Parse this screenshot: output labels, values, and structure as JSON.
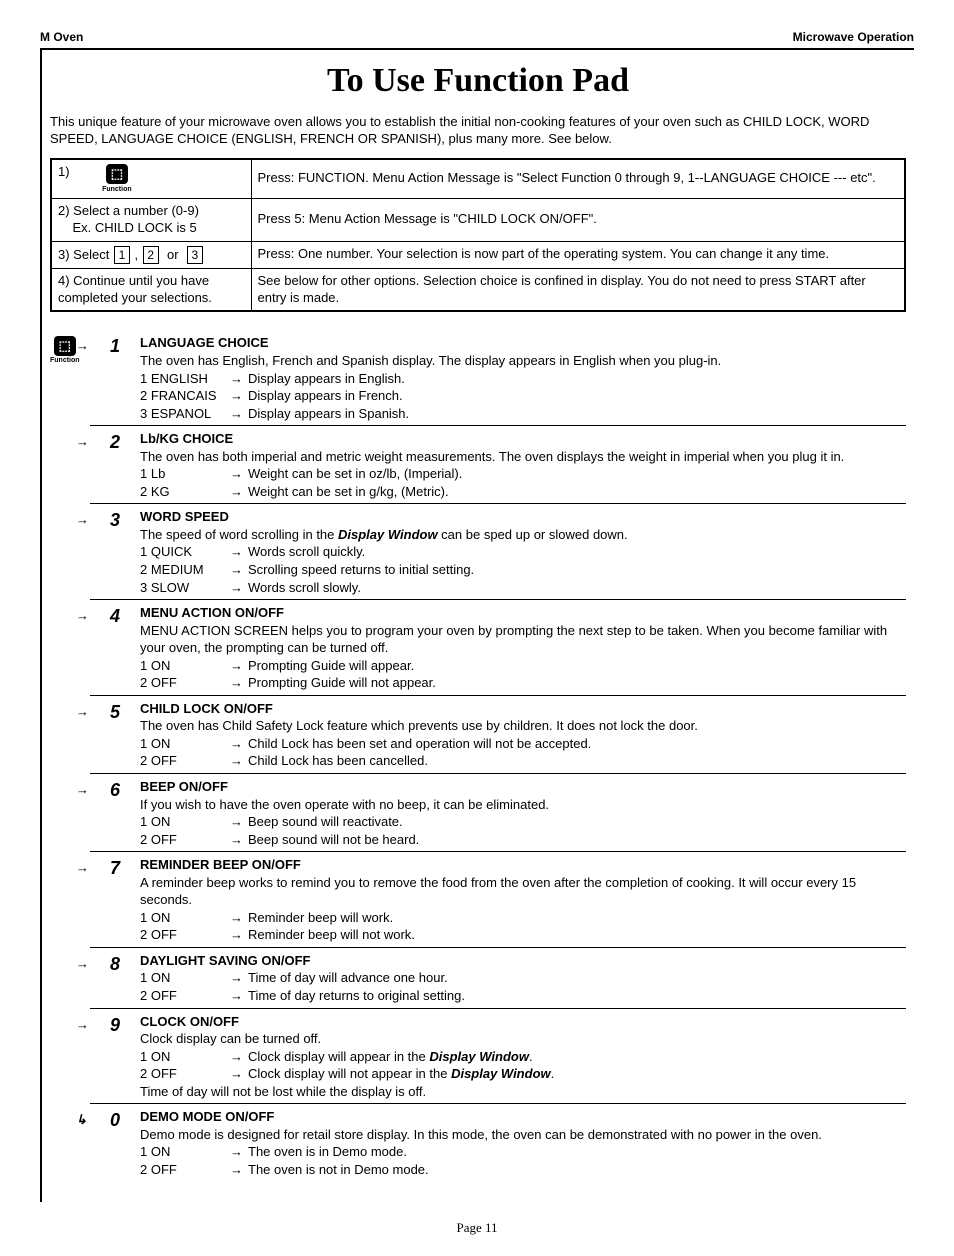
{
  "header": {
    "left": "M Oven",
    "right": "Microwave Operation"
  },
  "title": "To Use Function Pad",
  "intro": "This unique feature of your microwave oven allows you to establish the initial non-cooking features of your oven such as CHILD LOCK, WORD SPEED, LANGUAGE CHOICE (ENGLISH, FRENCH OR SPANISH), plus many more. See below.",
  "steps": [
    {
      "n": "1)",
      "left_html": "icon",
      "right": "Press: FUNCTION. Menu Action Message is \"Select Function 0 through 9, 1--LANGUAGE CHOICE --- etc\"."
    },
    {
      "n": "2)",
      "left_text": "Select a number (0-9)\nEx.  CHILD LOCK is 5",
      "right": "Press 5: Menu Action Message is \"CHILD LOCK ON/OFF\"."
    },
    {
      "n": "3)",
      "left_html": "select123",
      "right": "Press: One number. Your selection is now part of the operating system. You can change it any time."
    },
    {
      "n": "4)",
      "left_text": "Continue until you have completed your selections.",
      "right": "See below for other options. Selection choice is confined in display. You do not need to press START after entry is made."
    }
  ],
  "icon_label": "Function",
  "select_word": "Select",
  "or_word": "or",
  "functions": [
    {
      "num": "1",
      "heading": "LANGUAGE CHOICE",
      "desc": "The oven has English, French and Spanish display. The display appears in English when you plug-in.",
      "opts": [
        {
          "k": "1 ENGLISH",
          "v": "Display appears in English."
        },
        {
          "k": "2 FRANCAIS",
          "v": "Display appears in French."
        },
        {
          "k": "3 ESPANOL",
          "v": "Display appears in Spanish."
        }
      ]
    },
    {
      "num": "2",
      "heading": "Lb/KG CHOICE",
      "desc": "The oven has both imperial and metric weight measurements. The oven displays the weight in imperial when you plug it in.",
      "opts": [
        {
          "k": "1 Lb",
          "v": "Weight can be set in oz/lb, (Imperial)."
        },
        {
          "k": "2 KG",
          "v": "Weight can be set in g/kg, (Metric)."
        }
      ]
    },
    {
      "num": "3",
      "heading": "WORD SPEED",
      "desc_html": "The speed of word scrolling in the <span class=\"bolditalic\">Display Window</span> can be sped up or slowed down.",
      "opts": [
        {
          "k": "1 QUICK",
          "v": "Words scroll quickly."
        },
        {
          "k": "2 MEDIUM",
          "v": "Scrolling speed returns to initial setting."
        },
        {
          "k": "3 SLOW",
          "v": "Words scroll slowly."
        }
      ]
    },
    {
      "num": "4",
      "heading": "MENU ACTION ON/OFF",
      "desc": "MENU ACTION SCREEN helps you to program your oven by prompting the next step to be taken. When you become familiar with your oven, the prompting can be turned off.",
      "opts": [
        {
          "k": "1 ON",
          "v": "Prompting Guide will appear."
        },
        {
          "k": "2 OFF",
          "v": "Prompting Guide will not appear."
        }
      ]
    },
    {
      "num": "5",
      "heading": "CHILD LOCK ON/OFF",
      "desc": "The oven has Child Safety Lock feature which prevents use by children.  It does not lock the door.",
      "opts": [
        {
          "k": "1 ON",
          "v": "Child Lock has been set and operation will not be accepted."
        },
        {
          "k": "2 OFF",
          "v": "Child Lock has been cancelled."
        }
      ]
    },
    {
      "num": "6",
      "heading": "BEEP ON/OFF",
      "desc": "If you wish to have the oven operate with no beep, it can be eliminated.",
      "opts": [
        {
          "k": "1 ON",
          "v": "Beep sound will reactivate."
        },
        {
          "k": "2 OFF",
          "v": "Beep sound will not be heard."
        }
      ]
    },
    {
      "num": "7",
      "heading": "REMINDER BEEP ON/OFF",
      "desc": "A reminder beep works to remind you to remove the food from the oven after the completion of cooking. It will occur every 15 seconds.",
      "opts": [
        {
          "k": "1 ON",
          "v": "Reminder beep will work."
        },
        {
          "k": "2 OFF",
          "v": "Reminder beep will not work."
        }
      ]
    },
    {
      "num": "8",
      "heading": "DAYLIGHT SAVING ON/OFF",
      "opts": [
        {
          "k": "1 ON",
          "v": "Time of day will advance one hour."
        },
        {
          "k": "2 OFF",
          "v": "Time of day returns to original setting."
        }
      ]
    },
    {
      "num": "9",
      "heading": "CLOCK ON/OFF",
      "desc": "Clock display can be turned off.",
      "opts": [
        {
          "k": "1 ON",
          "v_html": "Clock display will appear in the <span class=\"bolditalic\">Display Window</span>."
        },
        {
          "k": "2 OFF",
          "v_html": "Clock display will not appear in the <span class=\"bolditalic\">Display Window</span>."
        }
      ],
      "tail": "Time of day will not be lost while the display is off."
    },
    {
      "num": "0",
      "heading": "DEMO MODE ON/OFF",
      "desc": "Demo mode is designed for retail store display. In this mode, the oven can be demonstrated with no power in the oven.",
      "opts": [
        {
          "k": "1 ON",
          "v": "The oven is in Demo mode."
        },
        {
          "k": "2 OFF",
          "v": "The oven is not in Demo mode."
        }
      ]
    }
  ],
  "page": "Page 11"
}
